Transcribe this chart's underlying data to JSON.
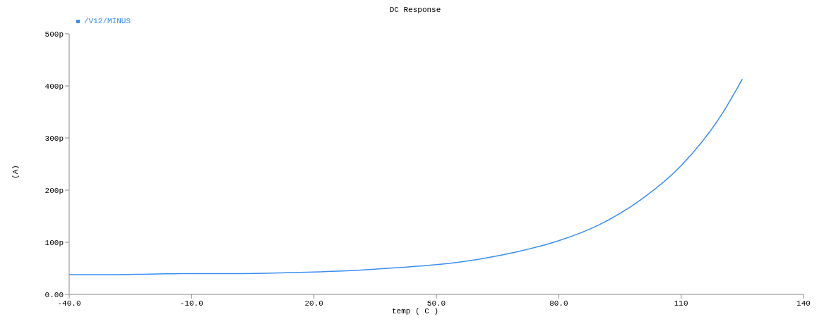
{
  "chart_data": {
    "type": "line",
    "title": "DC Response",
    "xlabel": "temp ( C )",
    "ylabel": "(A)",
    "x": [
      -40,
      -30,
      -20,
      -10,
      0,
      10,
      20,
      30,
      40,
      50,
      60,
      70,
      80,
      90,
      100,
      110,
      120,
      125
    ],
    "series": [
      {
        "name": "/V12/MINUS",
        "color": "#3a8ef0",
        "values": [
          38,
          38,
          39,
          40,
          40,
          41,
          43,
          46,
          51,
          57,
          67,
          82,
          103,
          134,
          181,
          247,
          346,
          413
        ]
      }
    ],
    "xlim": [
      -40,
      140
    ],
    "xticks": [
      {
        "value": -40,
        "label": "-40.0"
      },
      {
        "value": -10,
        "label": "-10.0"
      },
      {
        "value": 20,
        "label": "20.0"
      },
      {
        "value": 50,
        "label": "50.0"
      },
      {
        "value": 80,
        "label": "80.0"
      },
      110,
      140
    ],
    "ylim": [
      0,
      500
    ],
    "yticks": [
      {
        "value": 0,
        "label": "0.00"
      },
      {
        "value": 100,
        "label": "100p"
      },
      {
        "value": 200,
        "label": "200p"
      },
      {
        "value": 300,
        "label": "300p"
      },
      {
        "value": 400,
        "label": "400p"
      },
      {
        "value": 500,
        "label": "500p"
      }
    ],
    "legend": "top left",
    "line_style": "solid"
  }
}
